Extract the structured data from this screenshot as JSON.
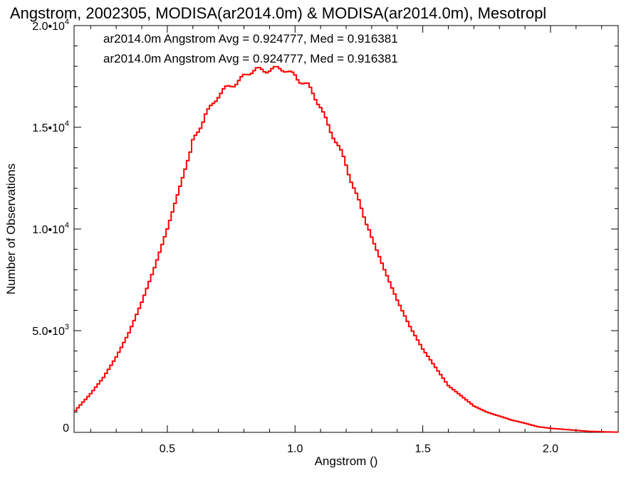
{
  "chart_data": {
    "type": "histogram",
    "title": "Angstrom, 2002305, MODISA(ar2014.0m) & MODISA(ar2014.0m), Mesotropl",
    "xlabel": "Angstrom ()",
    "ylabel": "Number of Observations",
    "xlim": [
      0.135,
      2.265
    ],
    "ylim": [
      0,
      20000
    ],
    "x_ticks": [
      {
        "value": 0.5,
        "label": "0.5"
      },
      {
        "value": 1.0,
        "label": "1.0"
      },
      {
        "value": 1.5,
        "label": "1.5"
      },
      {
        "value": 2.0,
        "label": "2.0"
      }
    ],
    "y_ticks": [
      {
        "value": 0,
        "label": "0",
        "exp": ""
      },
      {
        "value": 5000,
        "label": "5.0•10",
        "exp": "3"
      },
      {
        "value": 10000,
        "label": "1.0•10",
        "exp": "4"
      },
      {
        "value": 15000,
        "label": "1.5•10",
        "exp": "4"
      },
      {
        "value": 20000,
        "label": "2.0•10",
        "exp": "4"
      }
    ],
    "annotations": [
      {
        "text": "ar2014.0m Angstrom Avg = 0.924777, Med = 0.916381",
        "color": "#000000"
      },
      {
        "text": "ar2014.0m Angstrom Avg = 0.924777, Med = 0.916381",
        "color": "#ff0000"
      }
    ],
    "series": [
      {
        "color": "#ff0000",
        "x": [
          0.135,
          0.2,
          0.25,
          0.3,
          0.35,
          0.4,
          0.45,
          0.5,
          0.55,
          0.6,
          0.65,
          0.7,
          0.75,
          0.8,
          0.85,
          0.9,
          0.95,
          1.0,
          1.05,
          1.1,
          1.15,
          1.2,
          1.25,
          1.3,
          1.35,
          1.4,
          1.45,
          1.5,
          1.55,
          1.6,
          1.65,
          1.7,
          1.75,
          1.8,
          1.85,
          1.9,
          1.95,
          2.0,
          2.05,
          2.1,
          2.15,
          2.2,
          2.265
        ],
        "y": [
          1000,
          1900,
          2700,
          3700,
          4900,
          6400,
          8100,
          10000,
          12100,
          14200,
          15700,
          16500,
          17100,
          17500,
          17800,
          17900,
          17800,
          17600,
          17000,
          16000,
          14600,
          13100,
          11400,
          9600,
          8000,
          6500,
          5200,
          4100,
          3200,
          2300,
          1800,
          1300,
          1000,
          800,
          600,
          450,
          280,
          200,
          150,
          100,
          50,
          30,
          10
        ]
      }
    ]
  }
}
